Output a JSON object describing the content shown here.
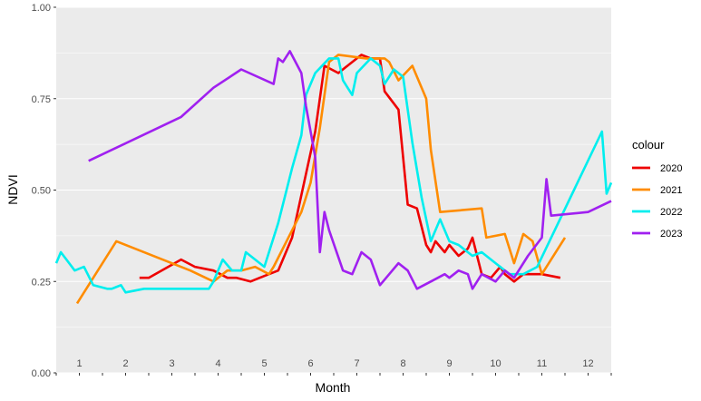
{
  "chart_data": {
    "type": "line",
    "xlabel": "Month",
    "ylabel": "NDVI",
    "x_tick_labels": [
      "1",
      "2",
      "3",
      "4",
      "5",
      "6",
      "7",
      "8",
      "9",
      "10",
      "11",
      "12"
    ],
    "y_tick_labels": [
      "0.00",
      "0.25",
      "0.50",
      "0.75",
      "1.00"
    ],
    "ylim": [
      0,
      1
    ],
    "xlim": [
      0.5,
      12.5
    ],
    "grid": true,
    "panel_background": "#ebebeb",
    "legend": {
      "title": "colour",
      "placement": "right"
    },
    "series": [
      {
        "name": "2020",
        "color": "#ee0000",
        "x": [
          2.3,
          2.5,
          3.2,
          3.5,
          3.9,
          4.2,
          4.4,
          4.7,
          4.9,
          5.3,
          5.6,
          6.1,
          6.3,
          6.6,
          6.9,
          7.1,
          7.3,
          7.5,
          7.6,
          7.9,
          8.1,
          8.3,
          8.5,
          8.6,
          8.7,
          8.9,
          9.0,
          9.2,
          9.4,
          9.5,
          9.7,
          9.9,
          10.1,
          10.2,
          10.4,
          10.6,
          11.0,
          11.4
        ],
        "y": [
          0.26,
          0.26,
          0.31,
          0.29,
          0.28,
          0.26,
          0.26,
          0.25,
          0.26,
          0.28,
          0.37,
          0.66,
          0.84,
          0.82,
          0.85,
          0.87,
          0.86,
          0.86,
          0.77,
          0.72,
          0.46,
          0.45,
          0.35,
          0.33,
          0.36,
          0.33,
          0.35,
          0.32,
          0.34,
          0.37,
          0.27,
          0.26,
          0.29,
          0.27,
          0.25,
          0.27,
          0.27,
          0.26
        ]
      },
      {
        "name": "2021",
        "color": "#ff8c00",
        "x": [
          0.95,
          1.8,
          3.4,
          3.9,
          4.2,
          4.5,
          4.8,
          5.1,
          5.2,
          5.4,
          5.8,
          6.0,
          6.2,
          6.4,
          6.6,
          7.2,
          7.5,
          7.6,
          7.7,
          7.9,
          8.2,
          8.5,
          8.6,
          8.8,
          9.7,
          9.8,
          10.2,
          10.4,
          10.6,
          10.8,
          11.0,
          11.5
        ],
        "y": [
          0.19,
          0.36,
          0.28,
          0.25,
          0.28,
          0.28,
          0.29,
          0.27,
          0.29,
          0.34,
          0.44,
          0.52,
          0.67,
          0.85,
          0.87,
          0.86,
          0.86,
          0.86,
          0.85,
          0.8,
          0.84,
          0.75,
          0.61,
          0.44,
          0.45,
          0.37,
          0.38,
          0.3,
          0.38,
          0.36,
          0.27,
          0.37
        ]
      },
      {
        "name": "2022",
        "color": "#00eeee",
        "x": [
          0.5,
          0.6,
          0.9,
          1.1,
          1.3,
          1.6,
          1.7,
          1.9,
          2.0,
          2.4,
          2.8,
          3.2,
          3.5,
          3.8,
          3.9,
          4.1,
          4.3,
          4.5,
          4.6,
          5.0,
          5.3,
          5.6,
          5.8,
          5.9,
          6.1,
          6.4,
          6.6,
          6.7,
          6.9,
          7.0,
          7.3,
          7.5,
          7.6,
          7.8,
          8.0,
          8.2,
          8.4,
          8.6,
          8.8,
          9.0,
          9.2,
          9.5,
          9.7,
          10.0,
          10.3,
          10.6,
          10.9,
          12.3,
          12.4,
          12.5
        ],
        "y": [
          0.3,
          0.33,
          0.28,
          0.29,
          0.24,
          0.23,
          0.23,
          0.24,
          0.22,
          0.23,
          0.23,
          0.23,
          0.23,
          0.23,
          0.25,
          0.31,
          0.28,
          0.28,
          0.33,
          0.29,
          0.41,
          0.56,
          0.65,
          0.76,
          0.82,
          0.86,
          0.86,
          0.8,
          0.76,
          0.82,
          0.86,
          0.84,
          0.79,
          0.83,
          0.81,
          0.63,
          0.48,
          0.36,
          0.42,
          0.36,
          0.35,
          0.32,
          0.33,
          0.3,
          0.27,
          0.27,
          0.29,
          0.66,
          0.49,
          0.52
        ]
      },
      {
        "name": "2023",
        "color": "#a020f0",
        "x": [
          1.2,
          3.2,
          3.9,
          4.5,
          5.2,
          5.3,
          5.4,
          5.55,
          5.8,
          5.9,
          6.1,
          6.2,
          6.3,
          6.4,
          6.7,
          6.9,
          7.1,
          7.3,
          7.5,
          7.7,
          7.9,
          8.1,
          8.3,
          8.6,
          8.9,
          9.0,
          9.2,
          9.4,
          9.5,
          9.7,
          10.0,
          10.2,
          10.4,
          10.7,
          11.0,
          11.1,
          11.2,
          12.0,
          12.5
        ],
        "y": [
          0.58,
          0.7,
          0.78,
          0.83,
          0.79,
          0.86,
          0.85,
          0.88,
          0.82,
          0.73,
          0.59,
          0.33,
          0.44,
          0.39,
          0.28,
          0.27,
          0.33,
          0.31,
          0.24,
          0.27,
          0.3,
          0.28,
          0.23,
          0.25,
          0.27,
          0.26,
          0.28,
          0.27,
          0.23,
          0.27,
          0.25,
          0.28,
          0.26,
          0.32,
          0.37,
          0.53,
          0.43,
          0.44,
          0.47
        ]
      }
    ]
  }
}
